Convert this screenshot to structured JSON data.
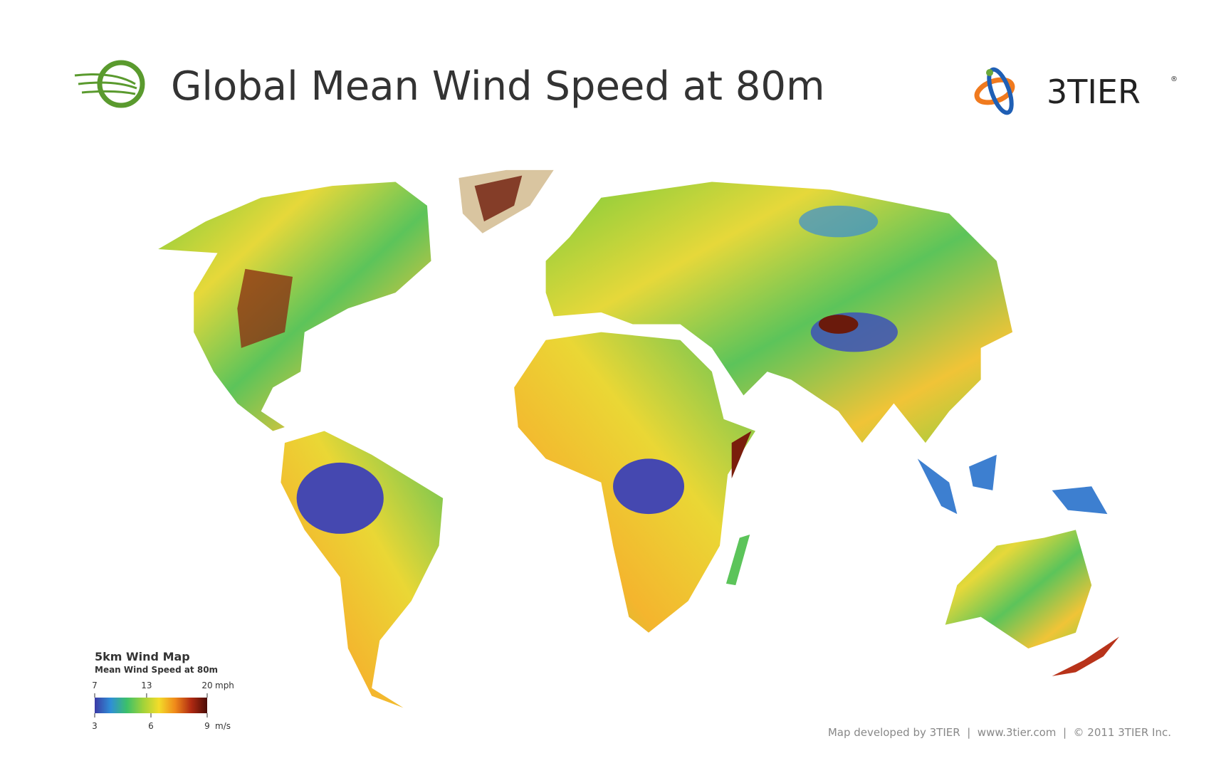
{
  "header": {
    "title": "Global Mean Wind Speed at 80m",
    "brand": "3TIER",
    "brand_mark": "®"
  },
  "legend": {
    "title": "5km Wind Map",
    "subtitle": "Mean Wind Speed at 80m",
    "colors": [
      "#3b3aa6",
      "#2f8fd6",
      "#3cc06a",
      "#9fd23a",
      "#f3dc2a",
      "#f08a1a",
      "#b02a12",
      "#4a0c06"
    ],
    "mph_ticks": [
      7,
      13,
      20
    ],
    "mph_unit": "mph",
    "ms_ticks": [
      3,
      6,
      9
    ],
    "ms_unit": "m/s"
  },
  "footer": {
    "credit": "Map developed by 3TIER  |  www.3tier.com  |  © 2011 3TIER Inc."
  }
}
